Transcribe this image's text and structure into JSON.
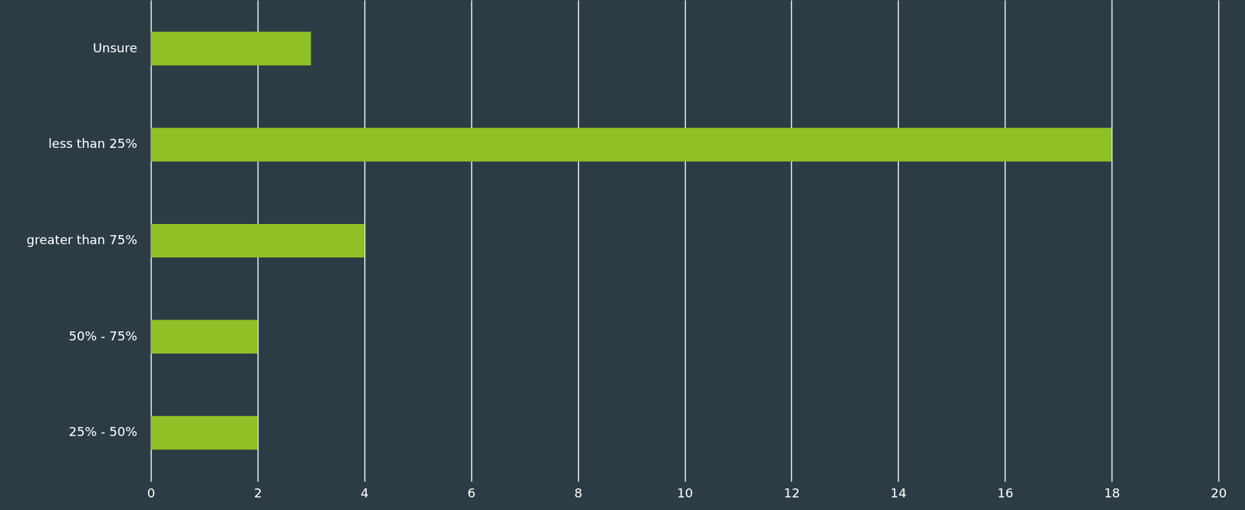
{
  "chart_data": {
    "type": "bar",
    "orientation": "horizontal",
    "categories": [
      "Unsure",
      "less than 25%",
      "greater than 75%",
      "50% - 75%",
      "25% - 50%"
    ],
    "values": [
      3,
      18,
      4,
      2,
      2
    ],
    "color": "#8fc126",
    "xlim": [
      0,
      20
    ],
    "xticks": [
      0,
      2,
      4,
      6,
      8,
      10,
      12,
      14,
      16,
      18,
      20
    ],
    "grid": "x"
  }
}
